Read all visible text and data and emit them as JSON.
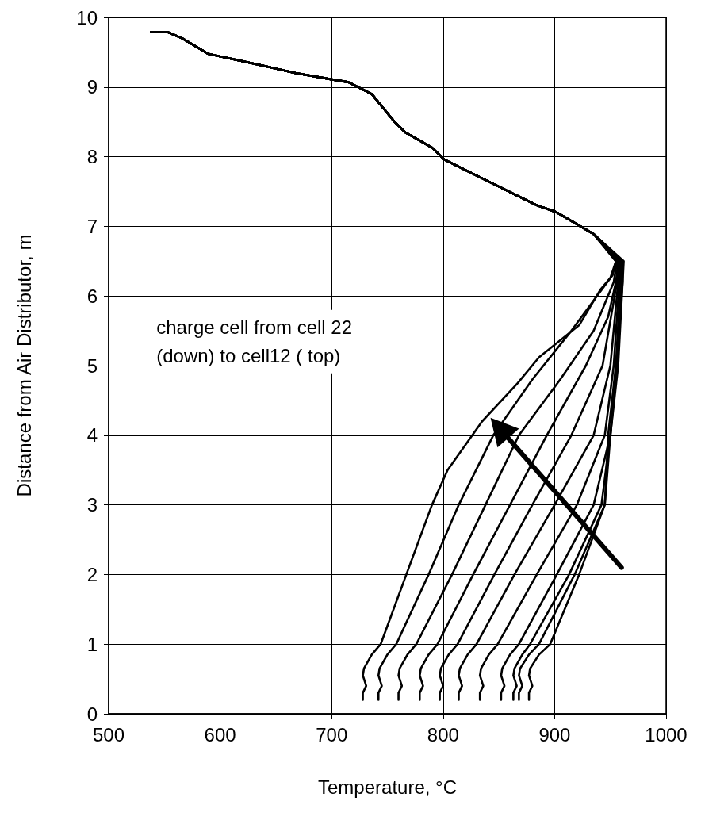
{
  "chart_data": {
    "type": "line",
    "xlabel": "Temperature, °C",
    "ylabel": "Distance from Air Distributor, m",
    "xlim": [
      500,
      1000
    ],
    "xticks": [
      500,
      600,
      700,
      800,
      900,
      1000
    ],
    "ylim": [
      0,
      10
    ],
    "yticks": [
      0,
      1,
      2,
      3,
      4,
      5,
      6,
      7,
      8,
      9,
      10
    ],
    "grid": true,
    "marker": "none",
    "line_style": "solid",
    "annotations": [
      "charge cell from cell 22\n(down) to cell12 ( top)"
    ],
    "series": [
      {
        "color": "#000000",
        "x": [
          728,
          728,
          731,
          728,
          729,
          736,
          744,
          767,
          790,
          804,
          835,
          867,
          886,
          922,
          941,
          950,
          955,
          935,
          902,
          883,
          821,
          801,
          790,
          766,
          756,
          736,
          715,
          700,
          668,
          635,
          589,
          566,
          553,
          538
        ],
        "values": [
          0.2,
          0.3,
          0.4,
          0.55,
          0.65,
          0.85,
          1,
          2,
          3,
          3.5,
          4.2,
          4.75,
          5.12,
          5.58,
          6.09,
          6.26,
          6.5,
          6.89,
          7.2,
          7.31,
          7.8,
          7.96,
          8.13,
          8.35,
          8.51,
          8.9,
          9.07,
          9.11,
          9.2,
          9.32,
          9.48,
          9.7,
          9.79,
          9.79
        ]
      },
      {
        "color": "#000000",
        "x": [
          742,
          742,
          745,
          742,
          743,
          750,
          758,
          787,
          814,
          845,
          880,
          915,
          938,
          952,
          955,
          935,
          902,
          883,
          821,
          801,
          790,
          766,
          756,
          736,
          715,
          700,
          668,
          635,
          589,
          566,
          553,
          538
        ],
        "values": [
          0.2,
          0.3,
          0.4,
          0.55,
          0.65,
          0.85,
          1,
          2,
          3,
          4,
          4.8,
          5.5,
          6,
          6.3,
          6.5,
          6.89,
          7.2,
          7.31,
          7.8,
          7.96,
          8.13,
          8.35,
          8.51,
          8.9,
          9.07,
          9.11,
          9.2,
          9.32,
          9.48,
          9.7,
          9.79,
          9.79
        ]
      },
      {
        "color": "#000000",
        "x": [
          760,
          760,
          763,
          760,
          761,
          768,
          776,
          808,
          838,
          868,
          905,
          935,
          953,
          956,
          935,
          902,
          883,
          821,
          801,
          790,
          766,
          756,
          736,
          715,
          700,
          668,
          635,
          589,
          566,
          553,
          538
        ],
        "values": [
          0.2,
          0.3,
          0.4,
          0.55,
          0.65,
          0.85,
          1,
          2,
          3,
          4,
          4.8,
          5.5,
          6.2,
          6.5,
          6.89,
          7.2,
          7.31,
          7.8,
          7.96,
          8.13,
          8.35,
          8.51,
          8.9,
          9.07,
          9.11,
          9.2,
          9.32,
          9.48,
          9.7,
          9.79,
          9.79
        ]
      },
      {
        "color": "#000000",
        "x": [
          779,
          779,
          782,
          779,
          780,
          787,
          795,
          827,
          860,
          893,
          928,
          948,
          955,
          957,
          935,
          902,
          883,
          821,
          801,
          790,
          766,
          756,
          736,
          715,
          700,
          668,
          635,
          589,
          566,
          553,
          538
        ],
        "values": [
          0.2,
          0.3,
          0.4,
          0.55,
          0.65,
          0.85,
          1,
          2,
          3,
          4,
          5,
          5.7,
          6.2,
          6.5,
          6.89,
          7.2,
          7.31,
          7.8,
          7.96,
          8.13,
          8.35,
          8.51,
          8.9,
          9.07,
          9.11,
          9.2,
          9.32,
          9.48,
          9.7,
          9.79,
          9.79
        ]
      },
      {
        "color": "#000000",
        "x": [
          797,
          797,
          800,
          797,
          798,
          805,
          813,
          846,
          880,
          915,
          943,
          956,
          958,
          935,
          902,
          883,
          821,
          801,
          790,
          766,
          756,
          736,
          715,
          700,
          668,
          635,
          589,
          566,
          553,
          538
        ],
        "values": [
          0.2,
          0.3,
          0.4,
          0.55,
          0.65,
          0.85,
          1,
          2,
          3,
          4,
          5,
          6.2,
          6.5,
          6.89,
          7.2,
          7.31,
          7.8,
          7.96,
          8.13,
          8.35,
          8.51,
          8.9,
          9.07,
          9.11,
          9.2,
          9.32,
          9.48,
          9.7,
          9.79,
          9.79
        ]
      },
      {
        "color": "#000000",
        "x": [
          814,
          814,
          817,
          814,
          815,
          822,
          830,
          864,
          900,
          935,
          950,
          957,
          959,
          935,
          902,
          883,
          821,
          801,
          790,
          766,
          756,
          736,
          715,
          700,
          668,
          635,
          589,
          566,
          553,
          538
        ],
        "values": [
          0.2,
          0.3,
          0.4,
          0.55,
          0.65,
          0.85,
          1,
          2,
          3,
          4,
          5,
          6.2,
          6.5,
          6.89,
          7.2,
          7.31,
          7.8,
          7.96,
          8.13,
          8.35,
          8.51,
          8.9,
          9.07,
          9.11,
          9.2,
          9.32,
          9.48,
          9.7,
          9.79,
          9.79
        ]
      },
      {
        "color": "#000000",
        "x": [
          833,
          833,
          836,
          833,
          834,
          841,
          849,
          884,
          920,
          945,
          953,
          958,
          960,
          935,
          902,
          883,
          821,
          801,
          790,
          766,
          756,
          736,
          715,
          700,
          668,
          635,
          589,
          566,
          553,
          538
        ],
        "values": [
          0.2,
          0.3,
          0.4,
          0.55,
          0.65,
          0.85,
          1,
          2,
          3,
          4,
          5,
          6.2,
          6.5,
          6.89,
          7.2,
          7.31,
          7.8,
          7.96,
          8.13,
          8.35,
          8.51,
          8.9,
          9.07,
          9.11,
          9.2,
          9.32,
          9.48,
          9.7,
          9.79,
          9.79
        ]
      },
      {
        "color": "#000000",
        "x": [
          852,
          852,
          855,
          852,
          853,
          860,
          868,
          902,
          935,
          950,
          955,
          959,
          960,
          935,
          902,
          883,
          821,
          801,
          790,
          766,
          756,
          736,
          715,
          700,
          668,
          635,
          589,
          566,
          553,
          538
        ],
        "values": [
          0.2,
          0.3,
          0.4,
          0.55,
          0.65,
          0.85,
          1,
          2,
          3,
          4,
          5,
          6.2,
          6.5,
          6.89,
          7.2,
          7.31,
          7.8,
          7.96,
          8.13,
          8.35,
          8.51,
          8.9,
          9.07,
          9.11,
          9.2,
          9.32,
          9.48,
          9.7,
          9.79,
          9.79
        ]
      },
      {
        "color": "#000000",
        "x": [
          863,
          863,
          866,
          863,
          864,
          871,
          878,
          913,
          942,
          950,
          956,
          960,
          961,
          935,
          902,
          883,
          821,
          801,
          790,
          766,
          756,
          736,
          715,
          700,
          668,
          635,
          589,
          566,
          553,
          538
        ],
        "values": [
          0.2,
          0.3,
          0.4,
          0.55,
          0.65,
          0.85,
          1,
          2,
          3,
          4,
          5,
          6.2,
          6.5,
          6.89,
          7.2,
          7.31,
          7.8,
          7.96,
          8.13,
          8.35,
          8.51,
          8.9,
          9.07,
          9.11,
          9.2,
          9.32,
          9.48,
          9.7,
          9.79,
          9.79
        ]
      },
      {
        "color": "#000000",
        "x": [
          868,
          868,
          871,
          868,
          869,
          877,
          886,
          918,
          945,
          950,
          957,
          961,
          961,
          935,
          902,
          883,
          821,
          801,
          790,
          766,
          756,
          736,
          715,
          700,
          668,
          635,
          589,
          566,
          553,
          538
        ],
        "values": [
          0.2,
          0.3,
          0.4,
          0.55,
          0.65,
          0.85,
          1,
          2,
          3,
          4,
          5,
          6.2,
          6.5,
          6.89,
          7.2,
          7.31,
          7.8,
          7.96,
          8.13,
          8.35,
          8.51,
          8.9,
          9.07,
          9.11,
          9.2,
          9.32,
          9.48,
          9.7,
          9.79,
          9.79
        ]
      },
      {
        "color": "#000000",
        "x": [
          877,
          877,
          880,
          877,
          878,
          886,
          896,
          922,
          945,
          948,
          955,
          961,
          962,
          935,
          902,
          883,
          821,
          801,
          790,
          766,
          756,
          736,
          715,
          700,
          668,
          635,
          589,
          566,
          553,
          538
        ],
        "values": [
          0.2,
          0.3,
          0.4,
          0.55,
          0.65,
          0.85,
          1,
          2,
          3,
          4,
          5,
          6.2,
          6.5,
          6.89,
          7.2,
          7.31,
          7.8,
          7.96,
          8.13,
          8.35,
          8.51,
          8.9,
          9.07,
          9.11,
          9.2,
          9.32,
          9.48,
          9.7,
          9.79,
          9.79
        ]
      }
    ]
  }
}
